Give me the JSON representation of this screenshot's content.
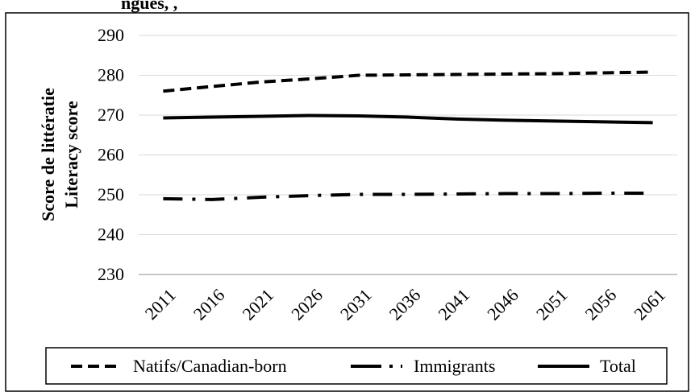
{
  "header": {
    "cropped_title_fragment": "ngues, , "
  },
  "chart_data": {
    "type": "line",
    "categories": [
      "2011",
      "2016",
      "2021",
      "2026",
      "2031",
      "2036",
      "2041",
      "2046",
      "2051",
      "2056",
      "2061"
    ],
    "ylabel_fr": "Score de littératie",
    "ylabel_en": "Literacy score",
    "ylim": [
      230,
      290
    ],
    "yticks": [
      "290",
      "280",
      "270",
      "260",
      "250",
      "240",
      "230"
    ],
    "grid": true,
    "legend_position": "bottom",
    "series": [
      {
        "name": "Natifs/Canadian-born",
        "style": "dashed",
        "color": "#000000",
        "values": [
          276,
          277.2,
          278.3,
          279.1,
          280,
          280.1,
          280.2,
          280.3,
          280.4,
          280.6,
          280.8
        ]
      },
      {
        "name": "Immigrants",
        "style": "dash-dot",
        "color": "#000000",
        "values": [
          249,
          248.8,
          249.4,
          249.8,
          250.1,
          250.1,
          250.2,
          250.3,
          250.3,
          250.4,
          250.4
        ]
      },
      {
        "name": "Total",
        "style": "solid",
        "color": "#000000",
        "values": [
          269.3,
          269.5,
          269.7,
          269.9,
          269.8,
          269.5,
          269.0,
          268.7,
          268.5,
          268.3,
          268.1
        ]
      }
    ]
  }
}
